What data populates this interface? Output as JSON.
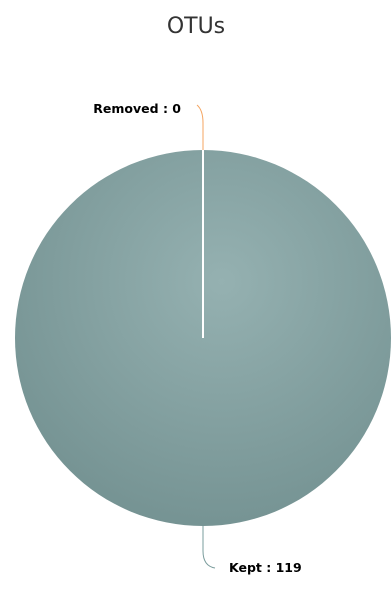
{
  "chart_data": {
    "type": "pie",
    "title": "OTUs",
    "slices": [
      {
        "name": "Removed",
        "value": 0,
        "label": "Removed : 0",
        "color": "#f4a460"
      },
      {
        "name": "Kept",
        "value": 119,
        "label": "Kept : 119",
        "color": "#7a9c9c"
      }
    ],
    "slice_border_color": "#ffffff",
    "legend": "none"
  }
}
